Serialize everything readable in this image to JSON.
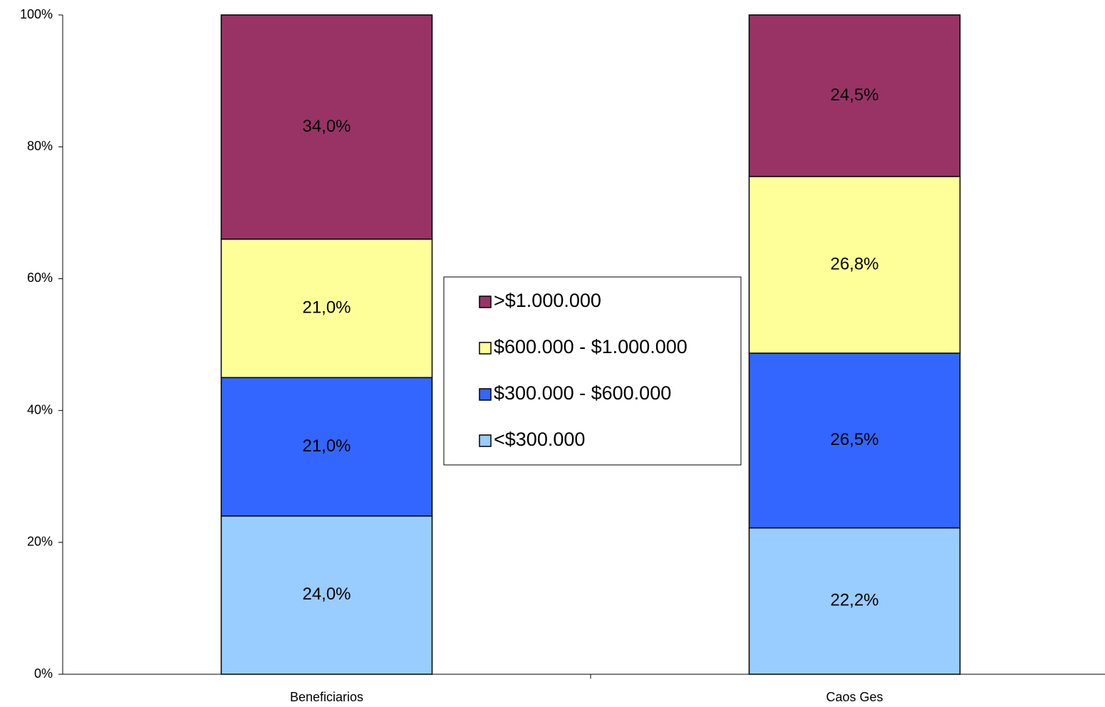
{
  "chart_data": {
    "type": "stacked_bar",
    "categories": [
      "Beneficiarios",
      "Caos Ges"
    ],
    "series": [
      {
        "name": "<$300.000",
        "color": "#99ccff",
        "values": [
          24.0,
          22.2
        ],
        "value_labels": [
          "24,0%",
          "22,2%"
        ]
      },
      {
        "name": "$300.000 - $600.000",
        "color": "#3366ff",
        "values": [
          21.0,
          26.5
        ],
        "value_labels": [
          "21,0%",
          "26,5%"
        ]
      },
      {
        "name": "$600.000 - $1.000.000",
        "color": "#ffff99",
        "values": [
          21.0,
          26.8
        ],
        "value_labels": [
          "21,0%",
          "26,8%"
        ]
      },
      {
        "name": ">$1.000.000",
        "color": "#993366",
        "values": [
          34.0,
          24.5
        ],
        "value_labels": [
          "34,0%",
          "24,5%"
        ]
      }
    ],
    "ylim": [
      0,
      100
    ],
    "yticks": [
      {
        "value": 0,
        "label": "0%"
      },
      {
        "value": 20,
        "label": "20%"
      },
      {
        "value": 40,
        "label": "40%"
      },
      {
        "value": 60,
        "label": "60%"
      },
      {
        "value": 80,
        "label": "80%"
      },
      {
        "value": 100,
        "label": "100%"
      }
    ],
    "legend_position": "center"
  }
}
